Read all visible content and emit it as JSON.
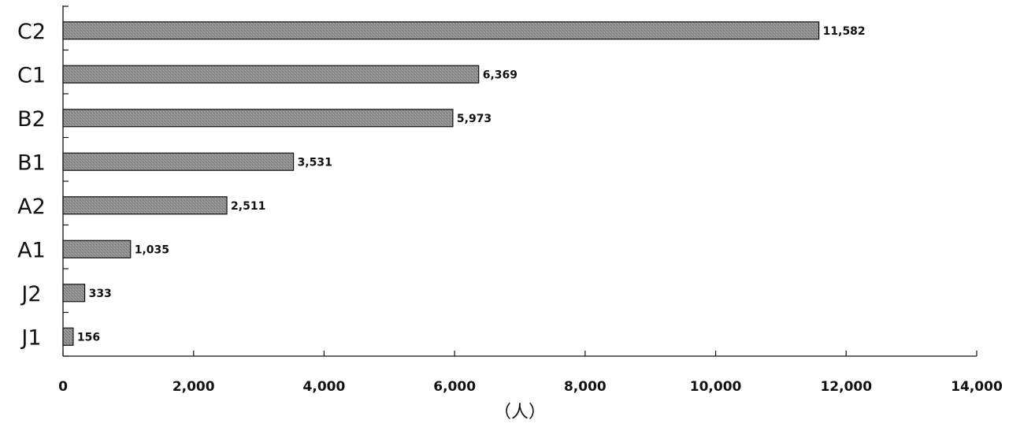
{
  "chart_data": {
    "type": "bar",
    "orientation": "horizontal",
    "categories": [
      "C2",
      "C1",
      "B2",
      "B1",
      "A2",
      "A1",
      "J2",
      "J1"
    ],
    "values": [
      11582,
      6369,
      5973,
      3531,
      2511,
      1035,
      333,
      156
    ],
    "value_labels": [
      "11,582",
      "6,369",
      "5,973",
      "3,531",
      "2,511",
      "1,035",
      "333",
      "156"
    ],
    "xlabel": "（人）",
    "xlim": [
      0,
      14000
    ],
    "x_ticks": [
      0,
      2000,
      4000,
      6000,
      8000,
      10000,
      12000,
      14000
    ],
    "x_tick_labels": [
      "0",
      "2,000",
      "4,000",
      "6,000",
      "8,000",
      "10,000",
      "12,000",
      "14,000"
    ],
    "grid": false,
    "legend": "none",
    "bar_color": "#8a8a8a"
  }
}
